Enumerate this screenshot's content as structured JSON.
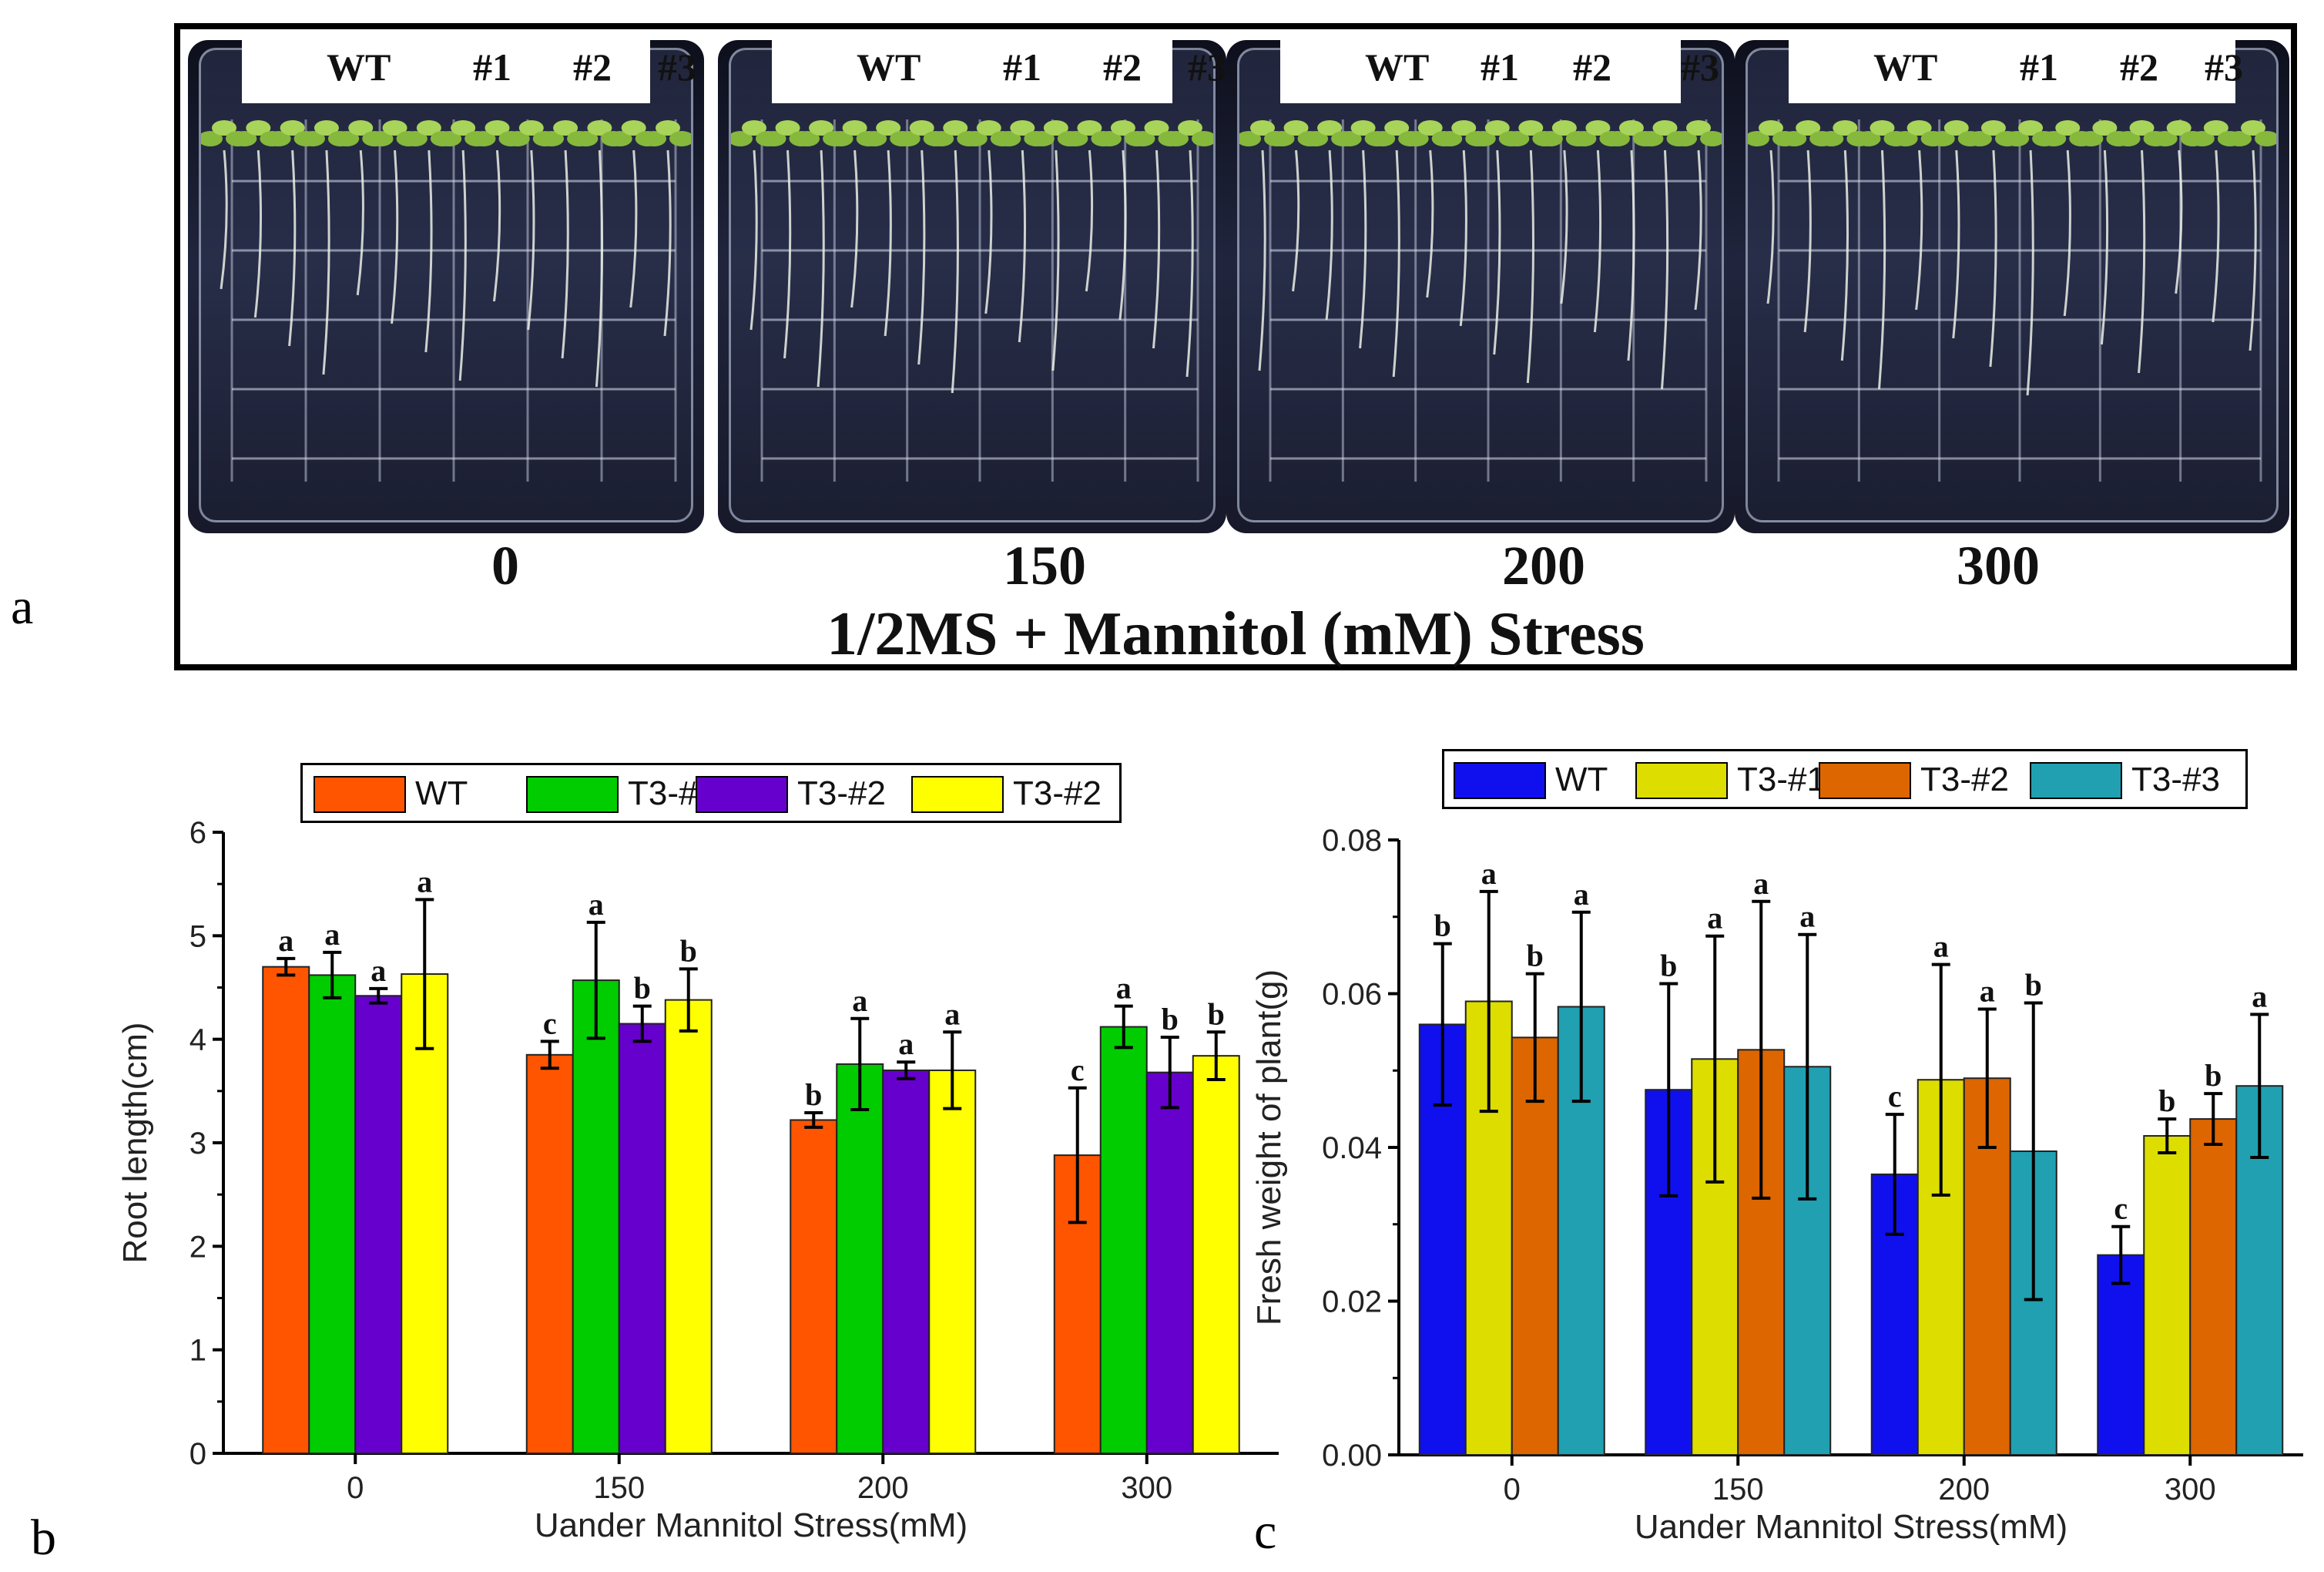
{
  "panel_a": {
    "letter": "a",
    "plate_labels": [
      "WT",
      "#1",
      "#2",
      "#3"
    ],
    "concentrations": [
      "0",
      "150",
      "200",
      "300"
    ],
    "title": "1/2MS + Mannitol (mM)  Stress"
  },
  "panel_b_letter": "b",
  "panel_c_letter": "c",
  "colors": {
    "b": [
      "#ff5500",
      "#00cc00",
      "#6600cc",
      "#ffff00"
    ],
    "c": [
      "#1010ee",
      "#dddd00",
      "#dd6600",
      "#20a0b0"
    ]
  },
  "chart_data": [
    {
      "type": "bar",
      "title": "",
      "xlabel": "Uander Mannitol Stress(mM)",
      "ylabel": "Root length(cm)",
      "categories": [
        "0",
        "150",
        "200",
        "300"
      ],
      "ylim": [
        0,
        6
      ],
      "yticks": [
        "0",
        "1",
        "2",
        "3",
        "4",
        "5",
        "6"
      ],
      "legend_position": "top",
      "series": [
        {
          "name": "WT",
          "values": [
            4.7,
            3.85,
            3.22,
            2.88
          ],
          "errors": [
            0.08,
            0.13,
            0.07,
            0.65
          ],
          "letters": [
            "a",
            "c",
            "b",
            "c"
          ]
        },
        {
          "name": "T3-#1",
          "values": [
            4.62,
            4.57,
            3.76,
            4.12
          ],
          "errors": [
            0.22,
            0.56,
            0.44,
            0.2
          ],
          "letters": [
            "a",
            "a",
            "a",
            "a"
          ]
        },
        {
          "name": "T3-#2",
          "values": [
            4.42,
            4.15,
            3.7,
            3.68
          ],
          "errors": [
            0.07,
            0.17,
            0.08,
            0.34
          ],
          "letters": [
            "a",
            "b",
            "a",
            "b"
          ]
        },
        {
          "name": "T3-#2",
          "values": [
            4.63,
            4.38,
            3.7,
            3.84
          ],
          "errors": [
            0.72,
            0.3,
            0.37,
            0.23
          ],
          "letters": [
            "a",
            "b",
            "a",
            "b"
          ]
        }
      ]
    },
    {
      "type": "bar",
      "title": "",
      "xlabel": "Uander Mannitol Stress(mM)",
      "ylabel": "Fresh weight of plant(g)",
      "categories": [
        "0",
        "150",
        "200",
        "300"
      ],
      "ylim": [
        0,
        0.08
      ],
      "yticks": [
        "0.00",
        "0.02",
        "0.04",
        "0.06",
        "0.08"
      ],
      "legend_position": "top",
      "series": [
        {
          "name": "WT",
          "values": [
            0.056,
            0.0475,
            0.0365,
            0.026
          ],
          "errors": [
            0.0105,
            0.0138,
            0.0078,
            0.0037
          ],
          "letters": [
            "b",
            "b",
            "c",
            "c"
          ]
        },
        {
          "name": "T3-#1",
          "values": [
            0.059,
            0.0515,
            0.0488,
            0.0415
          ],
          "errors": [
            0.0143,
            0.016,
            0.015,
            0.0022
          ],
          "letters": [
            "a",
            "a",
            "a",
            "b"
          ]
        },
        {
          "name": "T3-#2",
          "values": [
            0.0543,
            0.0527,
            0.049,
            0.0437
          ],
          "errors": [
            0.0083,
            0.0193,
            0.009,
            0.0033
          ],
          "letters": [
            "b",
            "a",
            "a",
            "b"
          ]
        },
        {
          "name": "T3-#3",
          "values": [
            0.0583,
            0.0505,
            0.0395,
            0.048
          ],
          "errors": [
            0.0123,
            0.0172,
            0.0193,
            0.0093
          ],
          "letters": [
            "a",
            "a",
            "b",
            "a"
          ]
        }
      ]
    }
  ]
}
